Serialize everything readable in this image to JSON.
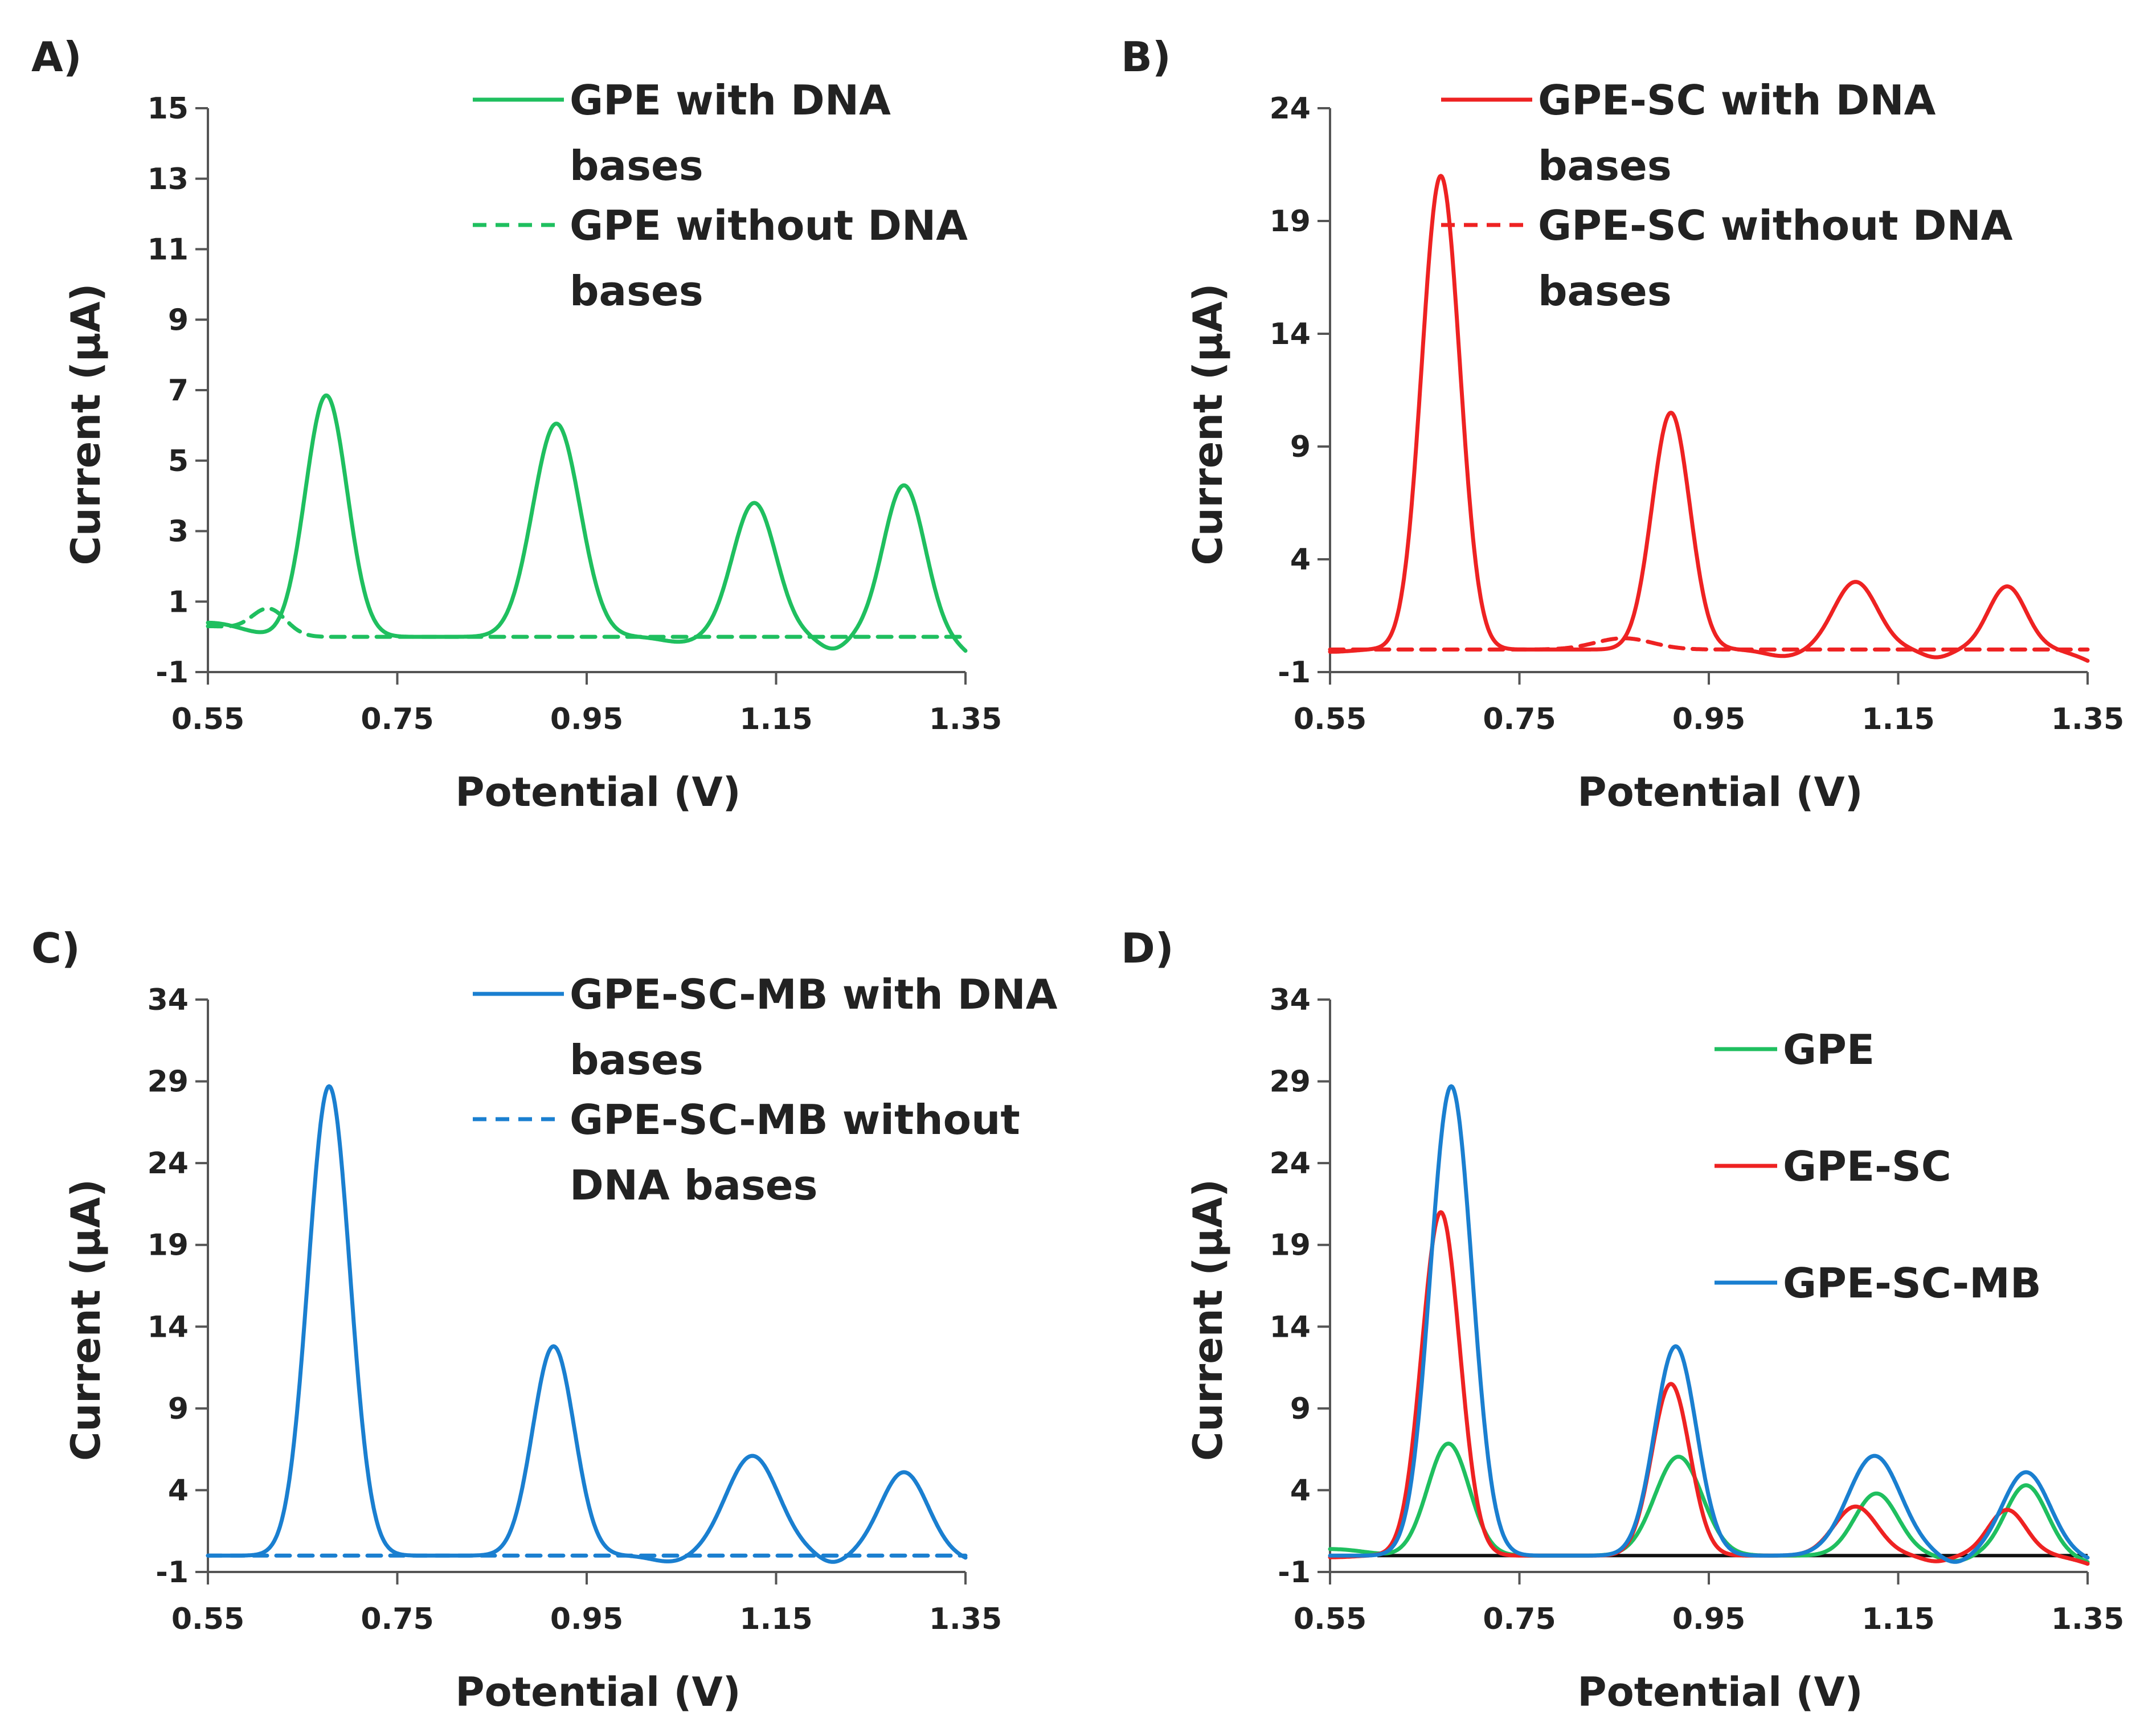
{
  "figure": {
    "panels": [
      "A)",
      "B)",
      "C)",
      "D)"
    ]
  },
  "colors": {
    "gpe": "#1fbf5f",
    "gpe_sc": "#ee2222",
    "gpe_sc_mb": "#1a7fd0",
    "axis": "#555555",
    "baseline": "#111111"
  },
  "chart_data": [
    {
      "panel": "A)",
      "type": "line",
      "xlabel": "Potential (V)",
      "ylabel": "Current (µA)",
      "xlim": [
        0.55,
        1.35
      ],
      "ylim": [
        -1,
        15
      ],
      "xticks": [
        "0.55",
        "0.75",
        "0.95",
        "1.15",
        "1.35"
      ],
      "yticks": [
        "-1",
        "1",
        "3",
        "5",
        "7",
        "9",
        "11",
        "13",
        "15"
      ],
      "legend_placement": "top-right",
      "series": [
        {
          "name": "GPE with DNA bases",
          "legend_lines": [
            "GPE with DNA",
            "bases"
          ],
          "color": "#1fbf5f",
          "dash": "solid",
          "baseline": 0,
          "start": {
            "x": 0.55,
            "y": 0.4,
            "fade_x": 0.63
          },
          "dips": [
            {
              "x": 1.05,
              "depth": -0.15,
              "width": 0.02
            },
            {
              "x": 1.21,
              "depth": -0.35,
              "width": 0.015
            }
          ],
          "end": {
            "x": 1.35,
            "y": -0.45
          },
          "peaks": [
            {
              "x": 0.675,
              "y": 6.85,
              "width": 0.022
            },
            {
              "x": 0.918,
              "y": 6.05,
              "width": 0.025
            },
            {
              "x": 1.127,
              "y": 3.8,
              "width": 0.023
            },
            {
              "x": 1.285,
              "y": 4.3,
              "width": 0.022
            }
          ]
        },
        {
          "name": "GPE without DNA bases",
          "legend_lines": [
            "GPE without DNA",
            "bases"
          ],
          "color": "#1fbf5f",
          "dash": "dashed",
          "baseline": 0,
          "start": {
            "x": 0.55,
            "y": 0.3,
            "fade_x": 0.64
          },
          "dips": [],
          "end": {
            "x": 1.35,
            "y": 0
          },
          "peaks": [
            {
              "x": 0.615,
              "y": 0.75,
              "width": 0.018
            }
          ]
        }
      ]
    },
    {
      "panel": "B)",
      "type": "line",
      "xlabel": "Potential (V)",
      "ylabel": "Current (µA)",
      "xlim": [
        0.55,
        1.35
      ],
      "ylim": [
        -1,
        24
      ],
      "xticks": [
        "0.55",
        "0.75",
        "0.95",
        "1.15",
        "1.35"
      ],
      "yticks": [
        "-1",
        "4",
        "9",
        "14",
        "19",
        "24"
      ],
      "legend_placement": "top-right",
      "series": [
        {
          "name": "GPE-SC with DNA bases",
          "legend_lines": [
            "GPE-SC with DNA",
            "bases"
          ],
          "color": "#ee2222",
          "dash": "solid",
          "baseline": 0,
          "start": {
            "x": 0.55,
            "y": -0.1,
            "fade_x": 0.6
          },
          "dips": [
            {
              "x": 1.03,
              "depth": -0.3,
              "width": 0.02
            },
            {
              "x": 1.19,
              "depth": -0.35,
              "width": 0.015
            }
          ],
          "end": {
            "x": 1.35,
            "y": -0.5
          },
          "peaks": [
            {
              "x": 0.667,
              "y": 21.0,
              "width": 0.02
            },
            {
              "x": 0.91,
              "y": 10.5,
              "width": 0.02
            },
            {
              "x": 1.105,
              "y": 3.0,
              "width": 0.023
            },
            {
              "x": 1.265,
              "y": 2.8,
              "width": 0.02
            }
          ]
        },
        {
          "name": "GPE-SC without DNA bases",
          "legend_lines": [
            "GPE-SC without DNA",
            "bases"
          ],
          "color": "#ee2222",
          "dash": "dashed",
          "baseline": 0,
          "start": {
            "x": 0.55,
            "y": 0,
            "fade_x": 0.6
          },
          "dips": [],
          "end": {
            "x": 1.35,
            "y": 0
          },
          "peaks": [
            {
              "x": 0.86,
              "y": 0.5,
              "width": 0.03
            }
          ]
        }
      ]
    },
    {
      "panel": "C)",
      "type": "line",
      "xlabel": "Potential (V)",
      "ylabel": "Current (µA)",
      "xlim": [
        0.55,
        1.35
      ],
      "ylim": [
        -1,
        34
      ],
      "xticks": [
        "0.55",
        "0.75",
        "0.95",
        "1.15",
        "1.35"
      ],
      "yticks": [
        "-1",
        "4",
        "9",
        "14",
        "19",
        "24",
        "29",
        "34"
      ],
      "legend_placement": "top-right",
      "series": [
        {
          "name": "GPE-SC-MB with DNA bases",
          "legend_lines": [
            "GPE-SC-MB with DNA",
            "bases"
          ],
          "color": "#1a7fd0",
          "dash": "solid",
          "baseline": 0,
          "start": {
            "x": 0.55,
            "y": 0,
            "fade_x": 0.6
          },
          "dips": [
            {
              "x": 1.04,
              "depth": -0.4,
              "width": 0.02
            },
            {
              "x": 1.21,
              "depth": -0.5,
              "width": 0.015
            }
          ],
          "end": {
            "x": 1.35,
            "y": -0.3
          },
          "peaks": [
            {
              "x": 0.678,
              "y": 28.7,
              "width": 0.022
            },
            {
              "x": 0.915,
              "y": 12.8,
              "width": 0.022
            },
            {
              "x": 1.125,
              "y": 6.1,
              "width": 0.028
            },
            {
              "x": 1.285,
              "y": 5.1,
              "width": 0.025
            }
          ]
        },
        {
          "name": "GPE-SC-MB without DNA bases",
          "legend_lines": [
            "GPE-SC-MB without",
            "DNA bases"
          ],
          "color": "#1a7fd0",
          "dash": "dashed",
          "baseline": 0,
          "start": {
            "x": 0.55,
            "y": 0,
            "fade_x": 0.6
          },
          "dips": [],
          "end": {
            "x": 1.35,
            "y": 0
          },
          "peaks": []
        }
      ]
    },
    {
      "panel": "D)",
      "type": "line",
      "xlabel": "Potential (V)",
      "ylabel": "Current (µA)",
      "xlim": [
        0.55,
        1.35
      ],
      "ylim": [
        -1,
        34
      ],
      "xticks": [
        "0.55",
        "0.75",
        "0.95",
        "1.15",
        "1.35"
      ],
      "yticks": [
        "-1",
        "4",
        "9",
        "14",
        "19",
        "24",
        "29",
        "34"
      ],
      "legend_placement": "right",
      "baseline_line": true,
      "series": [
        {
          "name": "GPE",
          "legend_lines": [
            "GPE"
          ],
          "color": "#1fbf5f",
          "dash": "solid",
          "baseline": 0,
          "start": {
            "x": 0.55,
            "y": 0.4,
            "fade_x": 0.63
          },
          "dips": [
            {
              "x": 1.21,
              "depth": -0.35,
              "width": 0.015
            }
          ],
          "end": {
            "x": 1.35,
            "y": -0.45
          },
          "peaks": [
            {
              "x": 0.675,
              "y": 6.85,
              "width": 0.022
            },
            {
              "x": 0.918,
              "y": 6.05,
              "width": 0.025
            },
            {
              "x": 1.127,
              "y": 3.8,
              "width": 0.023
            },
            {
              "x": 1.285,
              "y": 4.3,
              "width": 0.022
            }
          ]
        },
        {
          "name": "GPE-SC",
          "legend_lines": [
            "GPE-SC"
          ],
          "color": "#ee2222",
          "dash": "solid",
          "baseline": 0,
          "start": {
            "x": 0.55,
            "y": -0.1,
            "fade_x": 0.6
          },
          "dips": [
            {
              "x": 1.19,
              "depth": -0.35,
              "width": 0.015
            }
          ],
          "end": {
            "x": 1.35,
            "y": -0.5
          },
          "peaks": [
            {
              "x": 0.667,
              "y": 21.0,
              "width": 0.02
            },
            {
              "x": 0.91,
              "y": 10.5,
              "width": 0.02
            },
            {
              "x": 1.105,
              "y": 3.0,
              "width": 0.023
            },
            {
              "x": 1.265,
              "y": 2.8,
              "width": 0.02
            }
          ]
        },
        {
          "name": "GPE-SC-MB",
          "legend_lines": [
            "GPE-SC-MB"
          ],
          "color": "#1a7fd0",
          "dash": "solid",
          "baseline": 0,
          "start": {
            "x": 0.55,
            "y": 0,
            "fade_x": 0.6
          },
          "dips": [
            {
              "x": 1.21,
              "depth": -0.5,
              "width": 0.015
            }
          ],
          "end": {
            "x": 1.35,
            "y": -0.3
          },
          "peaks": [
            {
              "x": 0.678,
              "y": 28.7,
              "width": 0.022
            },
            {
              "x": 0.915,
              "y": 12.8,
              "width": 0.022
            },
            {
              "x": 1.125,
              "y": 6.1,
              "width": 0.028
            },
            {
              "x": 1.285,
              "y": 5.1,
              "width": 0.025
            }
          ]
        }
      ]
    }
  ]
}
